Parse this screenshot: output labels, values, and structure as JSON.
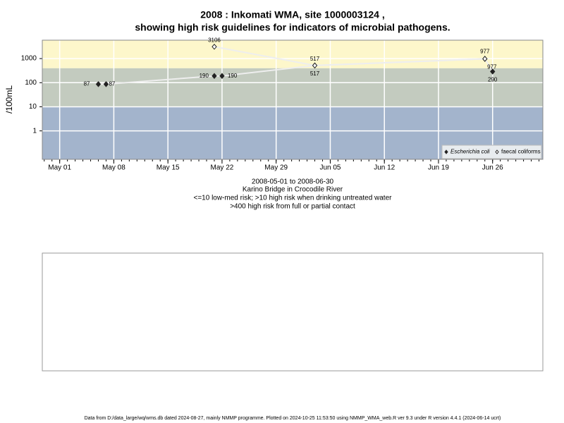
{
  "chart_data": {
    "type": "scatter-line",
    "title": [
      "2008 : Inkomati WMA, site 1000003124 ,",
      "showing high risk guidelines for indicators of microbial pathogens."
    ],
    "ylabel": "/100mL",
    "notes": [
      "2008-05-01 to 2008-06-30",
      "Karino Bridge in Crocodile River",
      "<=10 low-med risk; >10 high risk when drinking untreated water",
      ">400 high risk from full or partial contact"
    ],
    "log_y": true,
    "grid": true,
    "legend": "bottom-right",
    "guidelines": [
      10,
      400
    ],
    "band_colors": [
      "#a3b4cc",
      "#c3cbbf",
      "#fdf7cb"
    ],
    "xlim": [
      "2008-04-28T18:00",
      "2008-07-02T12:00"
    ],
    "xticks": [
      {
        "value": "2008-05-01",
        "label": "May 01"
      },
      {
        "value": "2008-05-08",
        "label": "May 08"
      },
      {
        "value": "2008-05-15",
        "label": "May 15"
      },
      {
        "value": "2008-05-22",
        "label": "May 22"
      },
      {
        "value": "2008-05-29",
        "label": "May 29"
      },
      {
        "value": "2008-06-05",
        "label": "Jun 05"
      },
      {
        "value": "2008-06-12",
        "label": "Jun 12"
      },
      {
        "value": "2008-06-19",
        "label": "Jun 19"
      },
      {
        "value": "2008-06-26",
        "label": "Jun 26"
      }
    ],
    "ylim": [
      0.066,
      5800
    ],
    "yticks": [
      1,
      10,
      100,
      1000
    ],
    "series": [
      {
        "name": "Escherichia coli",
        "color": "#222222",
        "x": [
          "2008-05-06",
          "2008-05-07",
          "2008-05-21",
          "2008-05-22",
          "2008-06-03",
          "2008-06-25",
          "2008-06-26"
        ],
        "values": [
          87,
          87,
          190,
          190,
          517,
          977,
          290
        ]
      },
      {
        "name": "faecal coliforms",
        "color": "#222222",
        "x": [
          "2008-05-21",
          "2008-06-03",
          "2008-06-25"
        ],
        "values": [
          3106,
          517,
          977
        ]
      }
    ]
  },
  "footer": "Data from D:/data_large/wq/wms.db dated 2024-08-27, mainly NMMP programme. Plotted on 2024-10-25 11:53:50 using NMMP_WMA_web.R ver 9.3 under R version 4.4.1 (2024-06-14 ucrt)"
}
